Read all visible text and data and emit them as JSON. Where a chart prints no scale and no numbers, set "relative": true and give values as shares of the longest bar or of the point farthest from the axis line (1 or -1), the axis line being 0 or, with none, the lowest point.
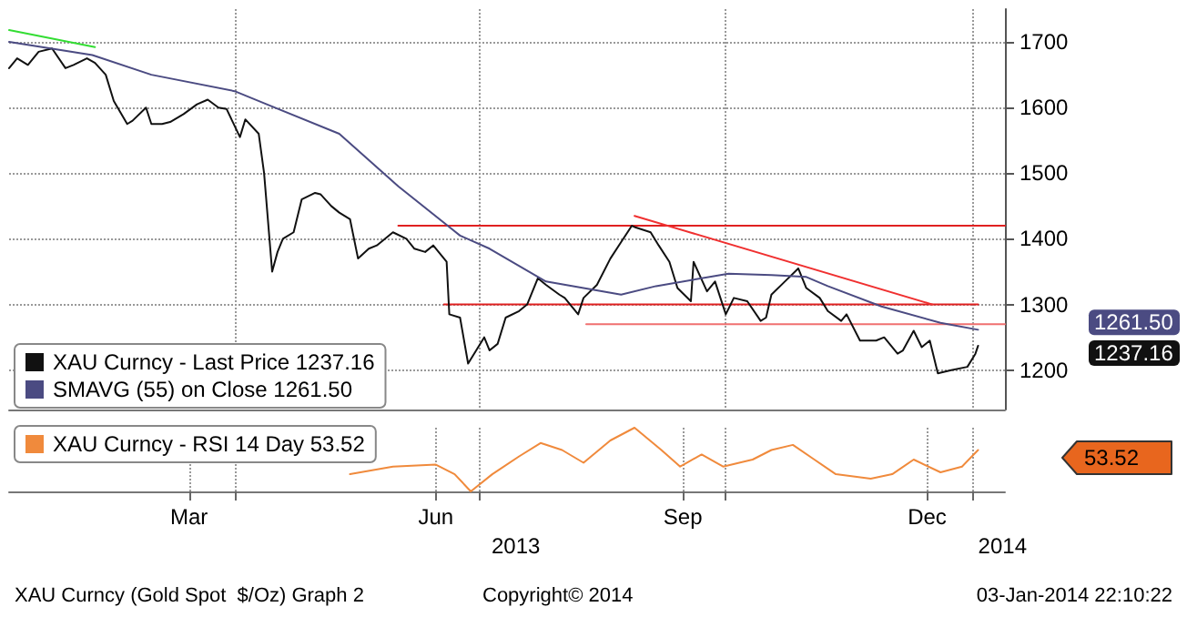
{
  "chart_data": [
    {
      "type": "line",
      "xlim": [
        "2013-01-07",
        "2014-01-13"
      ],
      "xticks": [
        {
          "value": "2013-04-01",
          "label": null
        },
        {
          "value": "2013-07-01",
          "label": null
        },
        {
          "value": "2013-10-01",
          "label": null
        },
        {
          "value": "2014-01-01",
          "label": null
        }
      ],
      "ylim": [
        1140,
        1750
      ],
      "yticks": [
        1200,
        1300,
        1400,
        1500,
        1600,
        1700
      ],
      "tick_labels": "y",
      "grid": true,
      "annotations": [
        "1237.16",
        "1261.50"
      ],
      "legend": "bottom left",
      "series": [
        {
          "name": "XAU Curncy - Last Price 1237.16",
          "color": "#111111",
          "x": [
            "2013-01-07",
            "2013-01-10",
            "2013-01-14",
            "2013-01-18",
            "2013-01-23",
            "2013-01-28",
            "2013-01-31",
            "2013-02-05",
            "2013-02-08",
            "2013-02-12",
            "2013-02-15",
            "2013-02-20",
            "2013-02-22",
            "2013-02-27",
            "2013-03-01",
            "2013-03-05",
            "2013-03-08",
            "2013-03-13",
            "2013-03-18",
            "2013-03-22",
            "2013-03-26",
            "2013-03-29",
            "2013-04-03",
            "2013-04-05",
            "2013-04-10",
            "2013-04-12",
            "2013-04-15",
            "2013-04-17",
            "2013-04-19",
            "2013-04-23",
            "2013-04-26",
            "2013-05-01",
            "2013-05-03",
            "2013-05-07",
            "2013-05-10",
            "2013-05-14",
            "2013-05-17",
            "2013-05-21",
            "2013-05-24",
            "2013-05-30",
            "2013-06-04",
            "2013-06-07",
            "2013-06-11",
            "2013-06-14",
            "2013-06-19",
            "2013-06-20",
            "2013-06-24",
            "2013-06-27",
            "2013-07-03",
            "2013-07-05",
            "2013-07-08",
            "2013-07-11",
            "2013-07-16",
            "2013-07-19",
            "2013-07-23",
            "2013-07-26",
            "2013-07-31",
            "2013-08-02",
            "2013-08-07",
            "2013-08-09",
            "2013-08-14",
            "2013-08-19",
            "2013-08-23",
            "2013-08-27",
            "2013-08-28",
            "2013-09-03",
            "2013-09-06",
            "2013-09-10",
            "2013-09-13",
            "2013-09-18",
            "2013-09-19",
            "2013-09-24",
            "2013-09-27",
            "2013-10-01",
            "2013-10-04",
            "2013-10-09",
            "2013-10-14",
            "2013-10-16",
            "2013-10-18",
            "2013-10-23",
            "2013-10-28",
            "2013-10-31",
            "2013-11-05",
            "2013-11-08",
            "2013-11-13",
            "2013-11-15",
            "2013-11-20",
            "2013-11-26",
            "2013-11-29",
            "2013-12-04",
            "2013-12-06",
            "2013-12-10",
            "2013-12-13",
            "2013-12-16",
            "2013-12-19",
            "2013-12-24",
            "2013-12-30",
            "2014-01-02",
            "2014-01-03"
          ],
          "values": [
            1660,
            1675,
            1665,
            1685,
            1690,
            1660,
            1665,
            1675,
            1668,
            1650,
            1610,
            1575,
            1580,
            1600,
            1575,
            1575,
            1578,
            1590,
            1605,
            1612,
            1600,
            1598,
            1555,
            1582,
            1560,
            1500,
            1350,
            1380,
            1400,
            1410,
            1460,
            1470,
            1468,
            1450,
            1440,
            1430,
            1370,
            1385,
            1390,
            1410,
            1400,
            1385,
            1380,
            1390,
            1365,
            1285,
            1280,
            1210,
            1250,
            1230,
            1240,
            1280,
            1290,
            1300,
            1340,
            1330,
            1315,
            1310,
            1285,
            1310,
            1330,
            1370,
            1395,
            1420,
            1418,
            1410,
            1390,
            1365,
            1325,
            1305,
            1365,
            1320,
            1335,
            1285,
            1310,
            1305,
            1275,
            1280,
            1315,
            1335,
            1355,
            1325,
            1310,
            1290,
            1275,
            1285,
            1245,
            1245,
            1250,
            1225,
            1230,
            1260,
            1235,
            1245,
            1195,
            1200,
            1205,
            1225,
            1237.16
          ]
        },
        {
          "name": "SMAVG (55) on Close 1261.50",
          "color": "#4b4b82",
          "x": [
            "2013-01-07",
            "2013-02-07",
            "2013-03-01",
            "2013-04-01",
            "2013-04-13",
            "2013-05-10",
            "2013-06-01",
            "2013-06-24",
            "2013-07-05",
            "2013-07-26",
            "2013-08-23",
            "2013-09-05",
            "2013-10-02",
            "2013-10-18",
            "2013-10-31",
            "2013-11-08",
            "2013-11-28",
            "2013-12-20",
            "2014-01-03"
          ],
          "values": [
            1700,
            1680,
            1650,
            1625,
            1605,
            1560,
            1480,
            1405,
            1385,
            1335,
            1315,
            1328,
            1347,
            1345,
            1342,
            1328,
            1297,
            1272,
            1261.5
          ]
        },
        {
          "color": "#33dd33",
          "x": [
            "2013-01-07",
            "2013-02-08"
          ],
          "values": [
            1718,
            1692
          ]
        },
        {
          "color": "#e02020",
          "x": [
            "2013-06-01",
            "2014-01-13"
          ],
          "values": [
            1420,
            1420
          ]
        },
        {
          "color": "#e02020",
          "x": [
            "2013-06-18",
            "2014-01-03"
          ],
          "values": [
            1300,
            1300
          ]
        },
        {
          "color": "#f07070",
          "x": [
            "2013-08-10",
            "2014-01-13"
          ],
          "values": [
            1270,
            1270
          ]
        },
        {
          "color": "#f03030",
          "x": [
            "2013-08-28",
            "2013-12-17"
          ],
          "values": [
            1435,
            1300
          ]
        }
      ]
    },
    {
      "type": "line",
      "relative": true,
      "xlim": [
        "2013-01-07",
        "2014-01-13"
      ],
      "xticks": [
        {
          "value": "2013-03-15",
          "label": "Mar"
        },
        {
          "value": "2013-04-01",
          "label": null
        },
        {
          "value": "2013-06-15",
          "label": "Jun"
        },
        {
          "value": "2013-07-01",
          "label": null
        },
        {
          "value": "2013-09-15",
          "label": "Sep"
        },
        {
          "value": "2013-10-01",
          "label": null
        },
        {
          "value": "2013-12-15",
          "label": "Dec"
        },
        {
          "value": "2014-01-01",
          "label": null
        }
      ],
      "xlabel": "2013",
      "tick_labels": "x",
      "grid": "x",
      "legend": "top left",
      "annotations": [
        "53.52",
        "XAU Curncy (Gold Spot  $/Oz) Graph 2",
        "Copyright© 2014",
        "03-Jan-2014 22:10:22",
        "2014"
      ],
      "series": [
        {
          "name": "XAU Curncy - RSI 14 Day 53.52",
          "color": "#f08a3c",
          "x": [
            "2013-05-14",
            "2013-05-30",
            "2013-06-15",
            "2013-06-22",
            "2013-06-28",
            "2013-07-06",
            "2013-07-16",
            "2013-07-24",
            "2013-08-01",
            "2013-08-09",
            "2013-08-19",
            "2013-08-28",
            "2013-09-07",
            "2013-09-14",
            "2013-09-22",
            "2013-09-30",
            "2013-10-11",
            "2013-10-18",
            "2013-10-26",
            "2013-11-03",
            "2013-11-11",
            "2013-11-24",
            "2013-12-02",
            "2013-12-10",
            "2013-12-20",
            "2013-12-28",
            "2014-01-03"
          ],
          "values": [
            0.27,
            0.39,
            0.42,
            0.27,
            0,
            0.27,
            0.55,
            0.76,
            0.65,
            0.45,
            0.8,
            1,
            0.65,
            0.39,
            0.58,
            0.39,
            0.5,
            0.65,
            0.73,
            0.5,
            0.27,
            0.2,
            0.27,
            0.5,
            0.3,
            0.39,
            0.65
          ]
        }
      ]
    }
  ]
}
